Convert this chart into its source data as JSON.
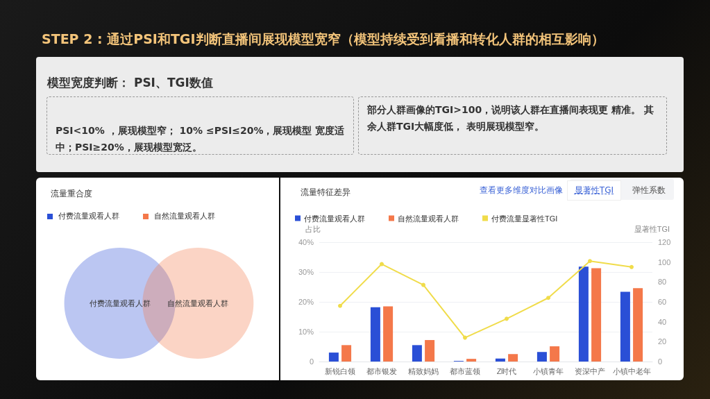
{
  "chart_data": [
    {
      "type": "other",
      "title": "STEP 2 : 通过PSI和TGI判断直播间展现模型宽窄（模型持续受到看播和转化人群的相互影响）",
      "subtitle": "模型宽度判断：  PSI、TGI数值",
      "annotations": [
        "PSI<10% ，展现模型窄； 10% ≤PSI≤20%，展现模型 宽度适中；PSI≥20%，展现模型宽泛。",
        "部分人群画像的TGI>100，说明该人群在直播间表现更 精准。 其余人群TGI大幅度低， 表明展现模型窄。"
      ]
    },
    {
      "type": "other",
      "title": "流量重合度",
      "categories": [
        "付费流量观看人群",
        "自然流量观看人群"
      ],
      "colors": [
        "#2a4fd6",
        "#f4784a"
      ]
    },
    {
      "type": "bar",
      "title": "流量特征差异",
      "ylabel": "占比",
      "y2label": "显著性TGI",
      "categories": [
        "新锐白领",
        "都市银发",
        "精致妈妈",
        "都市蓝领",
        "Z时代",
        "小镇青年",
        "资深中产",
        "小镇中老年"
      ],
      "series": [
        {
          "name": "付费流量观看人群",
          "color": "#2a4fd6",
          "values": [
            3.0,
            18.2,
            5.5,
            0.2,
            1.0,
            3.2,
            31.8,
            23.4
          ]
        },
        {
          "name": "自然流量观看人群",
          "color": "#f4784a",
          "values": [
            5.5,
            18.5,
            7.2,
            0.9,
            2.5,
            5.1,
            31.3,
            24.6
          ]
        },
        {
          "name": "付费流量显著性TGI",
          "type": "line",
          "axis": "y2",
          "color": "#f0dc4a",
          "marker": "circle",
          "values": [
            56,
            98,
            77,
            24,
            43,
            64,
            101,
            95
          ]
        }
      ],
      "ylim": [
        0,
        40
      ],
      "yticks": [
        0,
        {
          "value": 10,
          "label": "10%"
        },
        {
          "value": 20,
          "label": "20%"
        },
        {
          "value": 30,
          "label": "30%"
        },
        {
          "value": 40,
          "label": "40%"
        }
      ],
      "y2lim": [
        0,
        120
      ],
      "y2ticks": [
        0,
        20,
        40,
        60,
        80,
        100,
        120
      ],
      "grid": "y",
      "legend": "top left",
      "annotations": [
        "查看更多维度对比画像",
        "显著性TGI",
        "弹性系数"
      ]
    }
  ]
}
